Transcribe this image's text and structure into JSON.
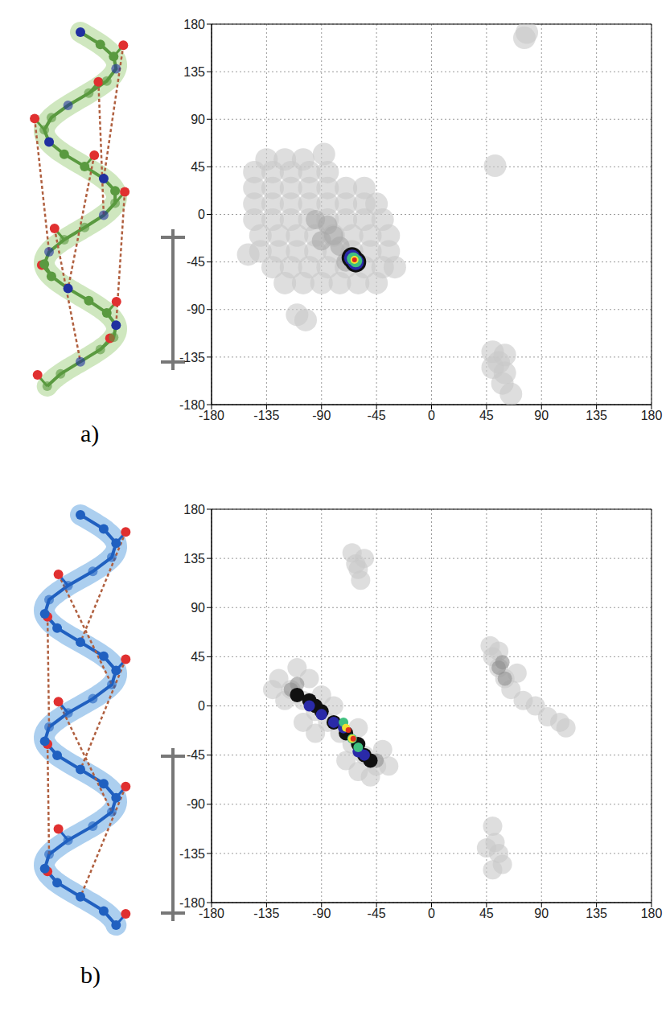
{
  "chart_data": [
    {
      "type": "scatter",
      "label": "a)",
      "xlim": [
        -180,
        180
      ],
      "ylim": [
        -180,
        180
      ],
      "xticks": [
        -180,
        -135,
        -90,
        -45,
        0,
        45,
        90,
        135,
        180
      ],
      "yticks": [
        -180,
        -135,
        -90,
        -45,
        0,
        45,
        90,
        135,
        180
      ],
      "grid": true,
      "series": [
        {
          "color": "#c8c8c8",
          "x": [
            -135,
            -120,
            -105,
            -145,
            -130,
            -115,
            -100,
            -85,
            -145,
            -130,
            -115,
            -100,
            -85,
            -70,
            -55,
            -145,
            -130,
            -115,
            -100,
            -85,
            -70,
            -55,
            -45,
            -145,
            -130,
            -115,
            -100,
            -85,
            -70,
            -55,
            -40,
            -140,
            -125,
            -110,
            -95,
            -80,
            -65,
            -50,
            -35,
            -140,
            -125,
            -110,
            -95,
            -80,
            -65,
            -50,
            -35,
            -130,
            -115,
            -100,
            -85,
            -70,
            -55,
            -40,
            -30,
            -120,
            -105,
            -90,
            -75,
            -60,
            -45,
            -110,
            -103,
            -88,
            -150,
            50,
            55,
            60,
            58,
            65,
            60,
            50,
            78,
            76,
            52
          ],
          "y": [
            52,
            52,
            52,
            40,
            40,
            40,
            40,
            40,
            25,
            25,
            25,
            25,
            25,
            25,
            25,
            10,
            10,
            10,
            10,
            10,
            10,
            10,
            10,
            -5,
            -5,
            -5,
            -5,
            -5,
            -5,
            -5,
            -5,
            -20,
            -20,
            -20,
            -20,
            -20,
            -20,
            -20,
            -20,
            -35,
            -35,
            -35,
            -35,
            -35,
            -35,
            -35,
            -35,
            -50,
            -50,
            -50,
            -50,
            -50,
            -50,
            -50,
            -50,
            -65,
            -65,
            -65,
            -65,
            -65,
            -65,
            -95,
            -100,
            57,
            -38,
            -130,
            -140,
            -150,
            -160,
            -170,
            -133,
            -145,
            172,
            167,
            46
          ]
        },
        {
          "color": "#a8a8a8",
          "x": [
            -95,
            -85,
            -80,
            -75,
            -90,
            -70
          ],
          "y": [
            -5,
            -10,
            -20,
            -30,
            -25,
            -45
          ]
        },
        {
          "color": "#101010",
          "x": [
            -65,
            -62
          ],
          "y": [
            -41,
            -45
          ]
        },
        {
          "color": "#2a2aa8",
          "x": [
            -65,
            -62
          ],
          "y": [
            -41,
            -45
          ]
        },
        {
          "color": "#40c080",
          "x": [
            -64,
            -62
          ],
          "y": [
            -42,
            -44
          ]
        },
        {
          "color": "#f0e030",
          "x": [
            -63
          ],
          "y": [
            -43
          ]
        },
        {
          "color": "#e02020",
          "x": [
            -63
          ],
          "y": [
            -43
          ]
        }
      ]
    },
    {
      "type": "scatter",
      "label": "b)",
      "xlim": [
        -180,
        180
      ],
      "ylim": [
        -180,
        180
      ],
      "xticks": [
        -180,
        -135,
        -90,
        -45,
        0,
        45,
        90,
        135,
        180
      ],
      "yticks": [
        -180,
        -135,
        -90,
        -45,
        0,
        45,
        90,
        135,
        180
      ],
      "grid": true,
      "series": [
        {
          "color": "#c8c8c8",
          "x": [
            -125,
            -115,
            -105,
            -95,
            -85,
            -75,
            -65,
            -55,
            -45,
            -50,
            -110,
            -100,
            -120,
            -90,
            -80,
            -60,
            -40,
            -35,
            -130,
            -105,
            -95,
            -70,
            -60,
            50,
            55,
            60,
            65,
            75,
            85,
            95,
            105,
            110,
            48,
            70,
            55,
            -60,
            -55,
            -65,
            -58,
            -62,
            50,
            52,
            55,
            58,
            50,
            45
          ],
          "y": [
            25,
            15,
            5,
            -5,
            -15,
            -25,
            -35,
            -45,
            -55,
            -65,
            35,
            25,
            5,
            10,
            0,
            -20,
            -40,
            -55,
            15,
            -15,
            -25,
            -50,
            -60,
            45,
            35,
            25,
            15,
            5,
            0,
            -10,
            -15,
            -20,
            55,
            30,
            50,
            125,
            135,
            140,
            115,
            130,
            -110,
            -125,
            -135,
            -145,
            -150,
            -130
          ]
        },
        {
          "color": "#909090",
          "x": [
            55,
            60,
            58,
            -115,
            -110,
            -45
          ],
          "y": [
            35,
            25,
            40,
            15,
            20,
            -50
          ]
        },
        {
          "color": "#101010",
          "x": [
            -110,
            -100,
            -90,
            -80,
            -70,
            -60,
            -55,
            -50,
            -95
          ],
          "y": [
            10,
            5,
            -5,
            -15,
            -25,
            -35,
            -45,
            -50,
            0
          ]
        },
        {
          "color": "#2a2aa8",
          "x": [
            -100,
            -90,
            -80,
            -72,
            -60,
            -55
          ],
          "y": [
            0,
            -8,
            -15,
            -20,
            -42,
            -45
          ]
        },
        {
          "color": "#40c080",
          "x": [
            -72,
            -65,
            -60
          ],
          "y": [
            -15,
            -30,
            -38
          ]
        },
        {
          "color": "#f0e030",
          "x": [
            -70,
            -65
          ],
          "y": [
            -20,
            -30
          ]
        },
        {
          "color": "#e03020",
          "x": [
            -68,
            -64
          ],
          "y": [
            -22,
            -30
          ]
        }
      ]
    }
  ]
}
